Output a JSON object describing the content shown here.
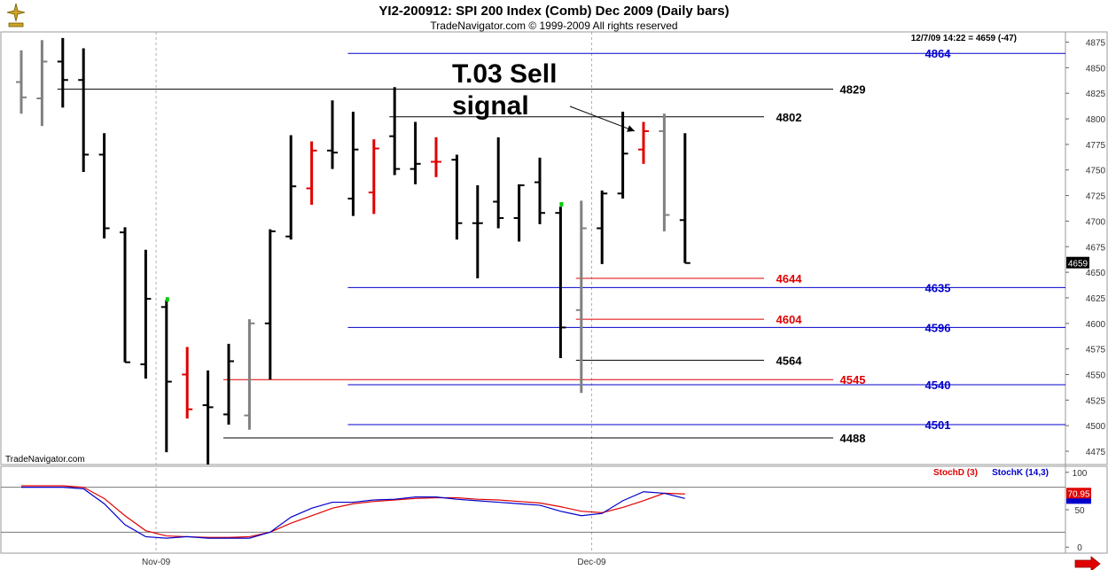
{
  "header": {
    "title": "YI2-200912:  SPI 200 Index (Comb) Dec 2009  (Daily bars)",
    "subtitle": "TradeNavigator.com © 1999-2009 All rights reserved",
    "info": "12/7/09 14:22 = 4659 (-47)",
    "watermark": "TradeNavigator.com"
  },
  "icons": {
    "logo": "trade-navigator-logo-icon",
    "scroll": "scroll-right-arrow-icon"
  },
  "colors": {
    "up": "#000000",
    "down": "#808080",
    "signal": "#e00000",
    "blue": "#0000cc",
    "red": "#e00000",
    "dot": "#00cc00"
  },
  "chart_data": [
    {
      "type": "ohlc",
      "ylim": [
        4462,
        4885
      ],
      "yticks": [
        4475,
        4500,
        4525,
        4550,
        4575,
        4600,
        4625,
        4650,
        4675,
        4700,
        4725,
        4750,
        4775,
        4800,
        4825,
        4850,
        4875
      ],
      "xlabels": [
        {
          "label": "Nov-09",
          "bar": 6.5
        },
        {
          "label": "Dec-09",
          "bar": 27.5
        }
      ],
      "last_price": "4659",
      "bars": [
        {
          "o": 4836,
          "h": 4867,
          "l": 4805,
          "c": 4821,
          "color": "gray"
        },
        {
          "o": 4820,
          "h": 4877,
          "l": 4793,
          "c": 4856,
          "color": "gray"
        },
        {
          "o": 4856,
          "h": 4879,
          "l": 4811,
          "c": 4838,
          "color": "black"
        },
        {
          "o": 4838,
          "h": 4869,
          "l": 4748,
          "c": 4765,
          "color": "black"
        },
        {
          "o": 4765,
          "h": 4786,
          "l": 4683,
          "c": 4693,
          "color": "black"
        },
        {
          "o": 4689,
          "h": 4694,
          "l": 4562,
          "c": 4562,
          "color": "black"
        },
        {
          "o": 4560,
          "h": 4672,
          "l": 4546,
          "c": 4624,
          "color": "black"
        },
        {
          "o": 4616,
          "h": 4623,
          "l": 4474,
          "c": 4543,
          "color": "black"
        },
        {
          "o": 4550,
          "h": 4577,
          "l": 4507,
          "c": 4516,
          "color": "red"
        },
        {
          "o": 4520,
          "h": 4554,
          "l": 4462,
          "c": 4518,
          "color": "black"
        },
        {
          "o": 4511,
          "h": 4580,
          "l": 4501,
          "c": 4563,
          "color": "black"
        },
        {
          "o": 4510,
          "h": 4604,
          "l": 4496,
          "c": 4600,
          "color": "gray"
        },
        {
          "o": 4600,
          "h": 4692,
          "l": 4545,
          "c": 4690,
          "color": "black"
        },
        {
          "o": 4685,
          "h": 4784,
          "l": 4682,
          "c": 4734,
          "color": "black"
        },
        {
          "o": 4732,
          "h": 4778,
          "l": 4716,
          "c": 4769,
          "color": "red"
        },
        {
          "o": 4769,
          "h": 4818,
          "l": 4751,
          "c": 4767,
          "color": "black"
        },
        {
          "o": 4722,
          "h": 4807,
          "l": 4705,
          "c": 4770,
          "color": "black"
        },
        {
          "o": 4728,
          "h": 4780,
          "l": 4707,
          "c": 4771,
          "color": "red"
        },
        {
          "o": 4783,
          "h": 4831,
          "l": 4745,
          "c": 4751,
          "color": "black"
        },
        {
          "o": 4751,
          "h": 4797,
          "l": 4736,
          "c": 4756,
          "color": "black"
        },
        {
          "o": 4758,
          "h": 4782,
          "l": 4743,
          "c": 4758,
          "color": "red"
        },
        {
          "o": 4760,
          "h": 4765,
          "l": 4682,
          "c": 4698,
          "color": "black"
        },
        {
          "o": 4698,
          "h": 4735,
          "l": 4644,
          "c": 4698,
          "color": "black"
        },
        {
          "o": 4719,
          "h": 4782,
          "l": 4693,
          "c": 4703,
          "color": "black"
        },
        {
          "o": 4703,
          "h": 4736,
          "l": 4680,
          "c": 4735,
          "color": "black"
        },
        {
          "o": 4738,
          "h": 4762,
          "l": 4697,
          "c": 4708,
          "color": "black"
        },
        {
          "o": 4708,
          "h": 4714,
          "l": 4566,
          "c": 4596,
          "color": "black"
        },
        {
          "o": 4613,
          "h": 4720,
          "l": 4532,
          "c": 4693,
          "color": "gray"
        },
        {
          "o": 4693,
          "h": 4730,
          "l": 4658,
          "c": 4727,
          "color": "black"
        },
        {
          "o": 4727,
          "h": 4807,
          "l": 4722,
          "c": 4766,
          "color": "black"
        },
        {
          "o": 4770,
          "h": 4797,
          "l": 4756,
          "c": 4788,
          "color": "red"
        },
        {
          "o": 4788,
          "h": 4805,
          "l": 4690,
          "c": 4706,
          "color": "gray"
        },
        {
          "o": 4701,
          "h": 4786,
          "l": 4659,
          "c": 4659,
          "color": "black"
        }
      ],
      "green_markers": [
        {
          "bar": 7,
          "value": 4623
        },
        {
          "bar": 26,
          "value": 4716
        }
      ],
      "levels": [
        {
          "value": 4864,
          "label": "4864",
          "color": "blue",
          "from_bar": 16
        },
        {
          "value": 4829,
          "label": "4829",
          "color": "black",
          "from_bar": 2
        },
        {
          "value": 4802,
          "label": "4802",
          "color": "black",
          "from_bar": 18
        },
        {
          "value": 4644,
          "label": "4644",
          "color": "red",
          "from_bar": 27
        },
        {
          "value": 4635,
          "label": "4635",
          "color": "blue",
          "from_bar": 16
        },
        {
          "value": 4604,
          "label": "4604",
          "color": "red",
          "from_bar": 27
        },
        {
          "value": 4596,
          "label": "4596",
          "color": "blue",
          "from_bar": 16
        },
        {
          "value": 4564,
          "label": "4564",
          "color": "black",
          "from_bar": 27
        },
        {
          "value": 4545,
          "label": "4545",
          "color": "red",
          "from_bar": 10
        },
        {
          "value": 4540,
          "label": "4540",
          "color": "blue",
          "from_bar": 16
        },
        {
          "value": 4501,
          "label": "4501",
          "color": "blue",
          "from_bar": 16
        },
        {
          "value": 4488,
          "label": "4488",
          "color": "black",
          "from_bar": 10
        }
      ],
      "annotation": {
        "lines": [
          "T.03 Sell",
          "signal"
        ],
        "arrow_to_bar": 30,
        "arrow_to_value": 4788
      }
    },
    {
      "type": "line",
      "ylim": [
        -8,
        108
      ],
      "yticks": [
        0,
        50,
        100
      ],
      "hlines": [
        20,
        80
      ],
      "series": [
        {
          "name": "StochD (3)",
          "color": "red",
          "last_value": "70.95",
          "values": [
            82,
            82,
            82,
            80,
            65,
            42,
            22,
            15,
            14,
            13,
            13,
            14,
            20,
            32,
            42,
            52,
            58,
            61,
            63,
            65,
            66,
            66,
            64,
            63,
            61,
            59,
            54,
            48,
            46,
            53,
            62,
            72,
            71
          ]
        },
        {
          "name": "StochK (14,3)",
          "color": "blue",
          "last_value": "",
          "values": [
            80,
            80,
            80,
            78,
            58,
            30,
            14,
            12,
            14,
            12,
            12,
            12,
            20,
            40,
            52,
            60,
            60,
            63,
            64,
            67,
            67,
            64,
            62,
            60,
            58,
            56,
            48,
            42,
            45,
            62,
            74,
            72,
            65
          ]
        }
      ]
    }
  ]
}
